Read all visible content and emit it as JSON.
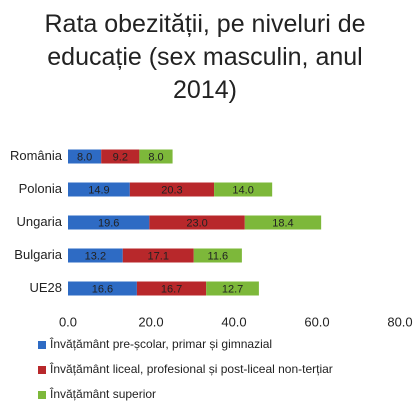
{
  "chart_data": {
    "type": "stacked-bar-horizontal",
    "title": "Rata obezității, pe niveluri de educație (sex masculin, anul 2014)",
    "categories": [
      "România",
      "Polonia",
      "Ungaria",
      "Bulgaria",
      "UE28"
    ],
    "series": [
      {
        "name": "Învățământ pre-școlar, primar și gimnazial",
        "color": "#2e6bc4",
        "values": [
          8.0,
          14.9,
          19.6,
          13.2,
          16.6
        ],
        "value_labels": [
          "8.0",
          "14.9",
          "19.6",
          "13.2",
          "16.6"
        ]
      },
      {
        "name": "Învățământ liceal, profesional și post-liceal non-terțiar",
        "color": "#b8282b",
        "values": [
          9.2,
          20.3,
          23.0,
          17.1,
          16.7
        ],
        "value_labels": [
          "9.2",
          "20.3",
          "23.0",
          "17.1",
          "16.7"
        ]
      },
      {
        "name": "Învățământ superior",
        "color": "#7db83a",
        "values": [
          8.0,
          14.0,
          18.4,
          11.6,
          12.7
        ],
        "value_labels": [
          "8.0",
          "14.0",
          "18.4",
          "11.6",
          "12.7"
        ]
      }
    ],
    "xlim": [
      0,
      80
    ],
    "xticks": [
      {
        "value": 0,
        "label": "0.0"
      },
      {
        "value": 20,
        "label": "20.0"
      },
      {
        "value": 40,
        "label": "40.0"
      },
      {
        "value": 60,
        "label": "60.0"
      },
      {
        "value": 80,
        "label": "80.0"
      }
    ],
    "legend": "bottom"
  }
}
